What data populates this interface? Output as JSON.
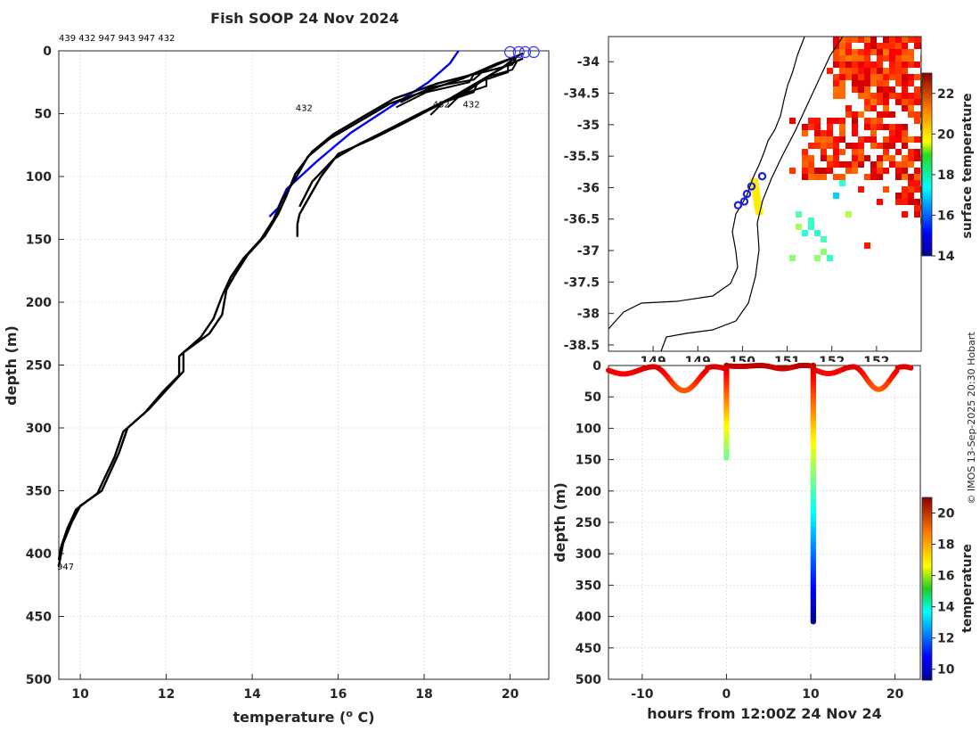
{
  "chart_data": [
    {
      "type": "line",
      "title": "Fish SOOP 24 Nov 2024",
      "xlabel": "temperature (",
      "xlabel_sup": "o",
      "xlabel_tail": " C)",
      "ylabel": "depth (m)",
      "xlim": [
        9.5,
        20.9
      ],
      "ylim": [
        500,
        0
      ],
      "xticks": [
        10,
        12,
        14,
        16,
        18,
        20
      ],
      "yticks": [
        0,
        50,
        100,
        150,
        200,
        250,
        300,
        350,
        400,
        450,
        500
      ],
      "top_ids": "439 432 947 943 947 432",
      "colors": {
        "profile": "#000000",
        "climatology": "#0000ee",
        "marker": "#3333ff"
      },
      "series": [
        {
          "name": "947",
          "label_depth": 410,
          "points": [
            [
              20.3,
              2
            ],
            [
              19.9,
              8
            ],
            [
              19.5,
              14
            ],
            [
              19.0,
              20
            ],
            [
              18.3,
              26
            ],
            [
              17.3,
              38
            ],
            [
              16.6,
              52
            ],
            [
              15.9,
              66
            ],
            [
              15.4,
              80
            ],
            [
              15.0,
              98
            ],
            [
              14.8,
              115
            ],
            [
              14.6,
              130
            ],
            [
              14.3,
              147
            ],
            [
              13.9,
              162
            ],
            [
              13.6,
              178
            ],
            [
              13.4,
              190
            ],
            [
              13.3,
              210
            ],
            [
              13.0,
              225
            ],
            [
              12.4,
              240
            ],
            [
              12.4,
              255
            ],
            [
              12.0,
              270
            ],
            [
              11.6,
              285
            ],
            [
              11.1,
              300
            ],
            [
              10.9,
              320
            ],
            [
              10.5,
              350
            ],
            [
              10.0,
              362
            ],
            [
              9.8,
              375
            ],
            [
              9.6,
              392
            ],
            [
              9.5,
              410
            ]
          ]
        },
        {
          "name": "943",
          "points": [
            [
              20.2,
              4
            ],
            [
              19.7,
              10
            ],
            [
              19.3,
              16
            ],
            [
              18.9,
              22
            ],
            [
              18.2,
              30
            ],
            [
              17.2,
              42
            ],
            [
              16.5,
              56
            ],
            [
              15.8,
              70
            ],
            [
              15.3,
              84
            ],
            [
              15.0,
              102
            ],
            [
              14.7,
              118
            ],
            [
              14.5,
              134
            ],
            [
              14.2,
              150
            ],
            [
              13.8,
              165
            ],
            [
              13.5,
              180
            ],
            [
              13.3,
              195
            ],
            [
              13.1,
              213
            ],
            [
              12.8,
              228
            ],
            [
              12.3,
              243
            ],
            [
              12.3,
              258
            ],
            [
              11.9,
              272
            ],
            [
              11.5,
              288
            ],
            [
              11.0,
              303
            ],
            [
              10.8,
              323
            ],
            [
              10.4,
              352
            ],
            [
              9.9,
              365
            ],
            [
              9.7,
              380
            ],
            [
              9.55,
              395
            ],
            [
              9.5,
              405
            ]
          ]
        },
        {
          "name": "432",
          "label_depth": 45,
          "points": [
            [
              20.3,
              6
            ],
            [
              19.9,
              12
            ],
            [
              19.6,
              18
            ],
            [
              19.3,
              25
            ],
            [
              19.0,
              32
            ],
            [
              18.4,
              42
            ],
            [
              17.5,
              58
            ],
            [
              16.8,
              70
            ],
            [
              16.0,
              82
            ],
            [
              15.6,
              100
            ],
            [
              15.3,
              118
            ],
            [
              15.1,
              130
            ],
            [
              15.05,
              138
            ],
            [
              15.05,
              148
            ]
          ]
        },
        {
          "name": "432b",
          "points": [
            [
              20.1,
              6
            ],
            [
              19.8,
              14
            ],
            [
              19.4,
              22
            ],
            [
              19.0,
              30
            ],
            [
              18.6,
              38
            ],
            [
              18.0,
              48
            ],
            [
              17.2,
              62
            ],
            [
              16.5,
              74
            ],
            [
              15.9,
              86
            ],
            [
              15.4,
              104
            ],
            [
              15.1,
              124
            ]
          ]
        }
      ],
      "climatology": {
        "name": "climatology",
        "points": [
          [
            18.8,
            0
          ],
          [
            18.6,
            10
          ],
          [
            18.1,
            25
          ],
          [
            17.2,
            45
          ],
          [
            16.3,
            65
          ],
          [
            15.5,
            88
          ],
          [
            14.8,
            110
          ],
          [
            14.6,
            125
          ],
          [
            14.4,
            132
          ]
        ]
      },
      "start_markers": [
        20.0,
        20.2,
        20.35,
        20.55
      ]
    },
    {
      "type": "heatmap",
      "name": "surface-temperature-map",
      "ylim": [
        -38.6,
        -33.6
      ],
      "xlim": [
        149.0,
        152.5
      ],
      "yticks": [
        "-34",
        "-34.5",
        "-35",
        "-35.5",
        "-36",
        "-36.5",
        "-37",
        "-37.5",
        "-38",
        "-38.5"
      ],
      "yticks_values": [
        -34,
        -34.5,
        -35,
        -35.5,
        -36,
        -36.5,
        -37,
        -37.5,
        -38,
        -38.5
      ],
      "xticks": [
        "149",
        "150",
        "151",
        "152"
      ],
      "xticks_values": [
        149.5,
        150.0,
        150.5,
        151.0,
        151.5,
        152.0
      ],
      "xtick_labels_partial": [
        "149",
        "149",
        "150",
        "151",
        "152",
        "152"
      ],
      "colorbar_label": "surface temperature",
      "colorbar_ticks": [
        14,
        16,
        18,
        20,
        22
      ],
      "colorbar_range": [
        14,
        23
      ],
      "stations": [
        [
          150.45,
          -36.28
        ],
        [
          150.52,
          -36.22
        ],
        [
          150.55,
          -36.1
        ],
        [
          150.6,
          -35.98
        ],
        [
          150.72,
          -35.82
        ]
      ]
    },
    {
      "type": "scatter",
      "name": "depth-vs-time",
      "xlabel": "hours from 12:00Z 24 Nov 24",
      "ylabel": "depth (m)",
      "xlim": [
        -14,
        23
      ],
      "ylim": [
        500,
        0
      ],
      "xticks": [
        -10,
        0,
        10,
        20
      ],
      "yticks": [
        0,
        50,
        100,
        150,
        200,
        250,
        300,
        350,
        400,
        450,
        500
      ],
      "colorbar_label": "temperature",
      "colorbar_ticks": [
        10,
        12,
        14,
        16,
        18,
        20
      ],
      "colorbar_range": [
        9.3,
        21
      ],
      "casts": [
        {
          "hour": 0,
          "max_depth": 148,
          "surface_temp": 20.3,
          "bottom_temp": 15.0
        },
        {
          "hour": 10.3,
          "max_depth": 410,
          "surface_temp": 20.3,
          "bottom_temp": 9.5
        }
      ],
      "tows": [
        {
          "from": -14,
          "to": -0.3,
          "depth_range": [
            2,
            40
          ],
          "temp": 20.1
        },
        {
          "from": 0.3,
          "to": 10,
          "depth_range": [
            0,
            5
          ],
          "temp": 20.3
        },
        {
          "from": 10.6,
          "to": 22,
          "depth_range": [
            2,
            38
          ],
          "temp": 20.0
        }
      ]
    }
  ],
  "watermark": "© IMOS 13-Sep-2025 20:30 Hobart"
}
